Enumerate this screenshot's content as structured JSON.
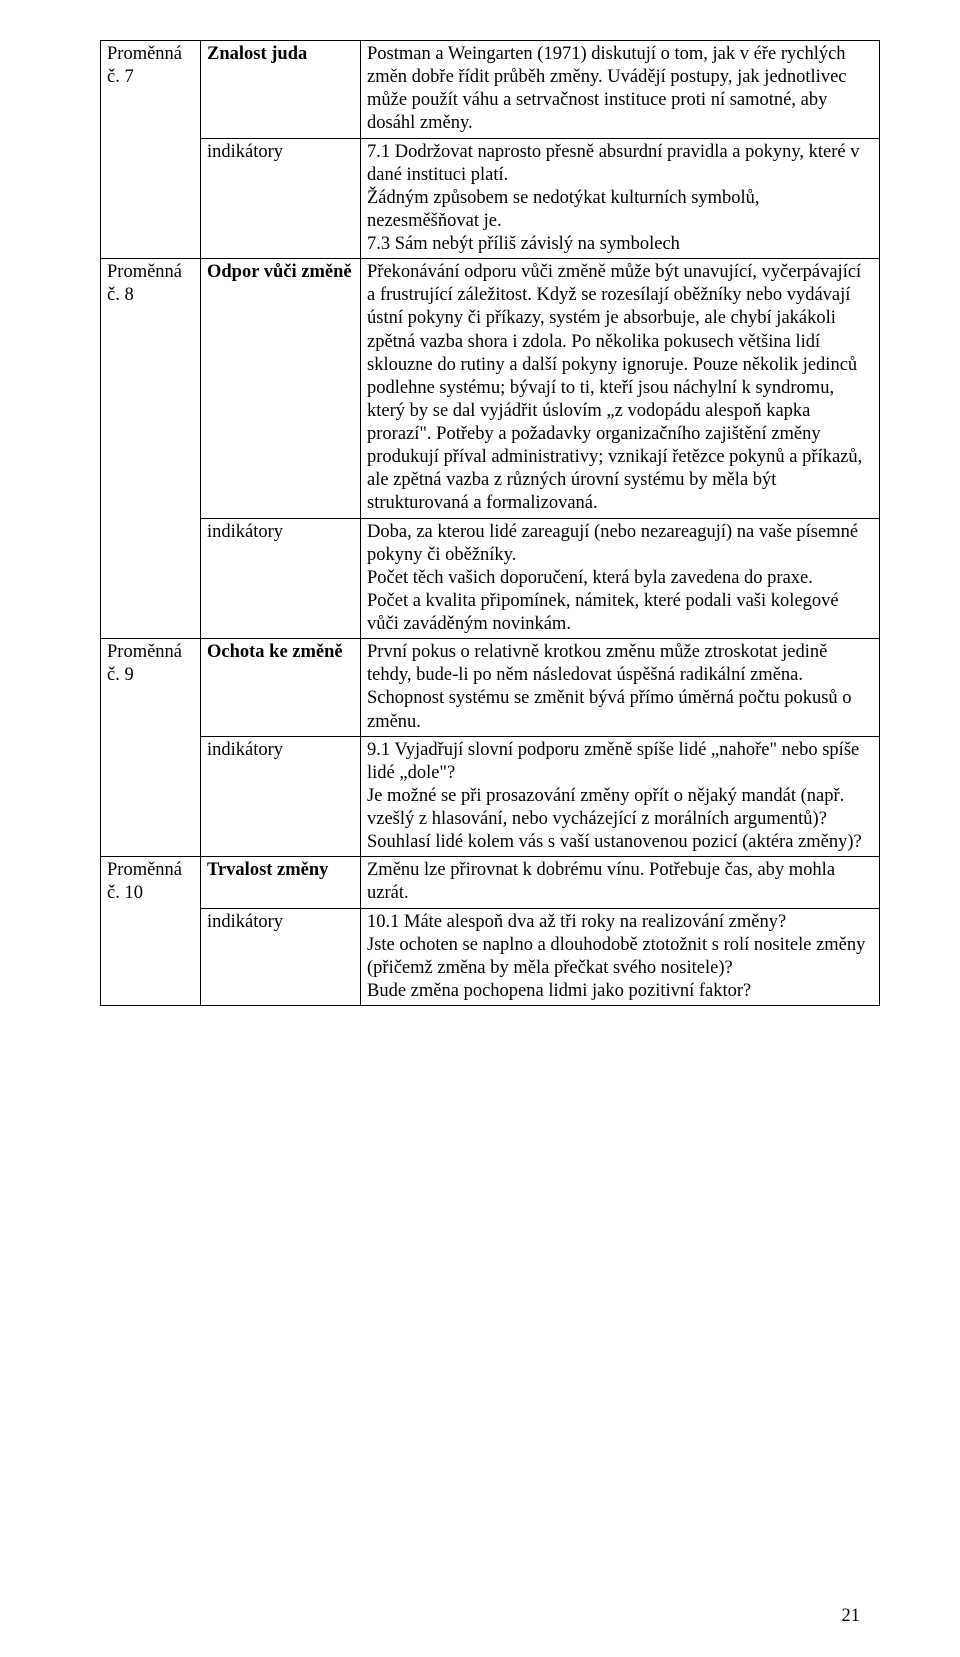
{
  "colors": {
    "background": "#ffffff",
    "text": "#000000",
    "border": "#000000"
  },
  "font": {
    "family": "Times New Roman",
    "size_pt": 14
  },
  "table": {
    "rows": [
      {
        "col1": "Proměnná č. 7",
        "col2_label": "Znalost juda",
        "col2_bold": true,
        "col3": "Postman a Weingarten (1971) diskutují o tom, jak v éře rychlých změn dobře řídit průběh změny. Uvádějí postupy, jak jednotlivec může použít váhu a setrvačnost instituce proti ní samotné, aby dosáhl změny."
      },
      {
        "col2_label": "indikátory",
        "col2_bold": false,
        "col3": "7.1   Dodržovat naprosto přesně absurdní pravidla a pokyny, které v dané instituci platí.\nŽádným způsobem se nedotýkat kulturních symbolů, nezesměšňovat je.\n7.3    Sám nebýt příliš závislý na symbolech"
      },
      {
        "col1": "Proměnná č. 8",
        "col2_label": "Odpor vůči změně",
        "col2_bold": true,
        "col3": "Překonávání odporu vůči změně může být unavující, vyčerpávající a frustrující záležitost. Když se rozesílají oběžníky nebo vydávají ústní pokyny či příkazy, systém je absorbuje, ale chybí jakákoli zpětná vazba shora i zdola. Po několika pokusech většina lidí sklouzne do rutiny a další pokyny ignoruje. Pouze několik jedinců podlehne systému; bývají to ti, kteří jsou náchylní k syndromu, který by se dal vyjádřit úslovím „z vodopádu alespoň kapka prorazí\". Potřeby a požadavky organizačního zajištění změny produkují příval administrativy; vznikají řetězce pokynů a příkazů, ale zpětná vazba z různých úrovní systému by měla být strukturovaná a formalizovaná."
      },
      {
        "col2_label": "indikátory",
        "col2_bold": false,
        "col3": "Doba, za kterou lidé zareagují (nebo nezareagují) na vaše písemné pokyny či oběžníky.\nPočet těch vašich doporučení, která byla zavedena do praxe.\nPočet a kvalita připomínek, námitek, které podali vaši kolegové vůči zaváděným novinkám."
      },
      {
        "col1": "Proměnná č. 9",
        "col2_label": "Ochota ke změně",
        "col2_bold": true,
        "col3": "První pokus o relativně krotkou změnu může ztroskotat jedině tehdy, bude-li po něm následovat úspěšná radikální změna. Schopnost systému se změnit bývá přímo úměrná počtu pokusů o změnu."
      },
      {
        "col2_label": "indikátory",
        "col2_bold": false,
        "col3": "9.1   Vyjadřují slovní podporu změně spíše lidé „nahoře\" nebo spíše lidé „dole\"?\nJe možné se při prosazování změny opřít o nějaký mandát (např. vzešlý z hlasování, nebo vycházející z morálních argumentů)?\nSouhlasí lidé kolem vás s vaší ustanovenou pozicí (aktéra změny)?"
      },
      {
        "col1": "Proměnná č. 10",
        "col2_label": "Trvalost změny",
        "col2_bold": true,
        "col3": "Změnu lze přirovnat k dobrému vínu. Potřebuje čas, aby mohla uzrát."
      },
      {
        "col2_label": "indikátory",
        "col2_bold": false,
        "col3": "10.1   Máte alespoň dva až tři roky na realizování změny?\nJste ochoten se naplno a dlouhodobě ztotožnit s rolí nositele změny (přičemž změna by měla přečkat svého nositele)?\nBude změna pochopena lidmi jako pozitivní faktor?"
      }
    ]
  },
  "page_number": "21"
}
